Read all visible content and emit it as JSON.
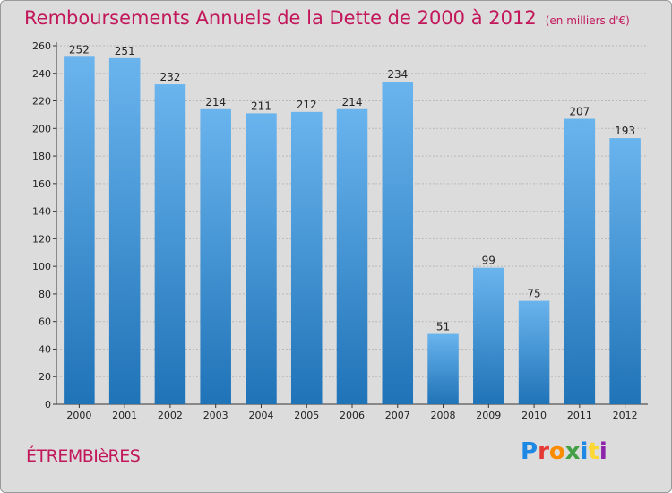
{
  "title": "Remboursements Annuels de la Dette de 2000 à 2012",
  "unit_note": "(en milliers d'€)",
  "commune": "ÉTREMBIèRES",
  "logo": {
    "letters": [
      "P",
      "r",
      "o",
      "x",
      "i",
      "t",
      "i"
    ],
    "colors": [
      "#1e88e5",
      "#e53935",
      "#fb8c00",
      "#43a047",
      "#1e88e5",
      "#fdd835",
      "#8e24aa"
    ]
  },
  "colors": {
    "bar_light": "#6ab4ee",
    "bar_dark": "#1f73b7",
    "background": "#dcdcdc",
    "title": "#c2185b"
  },
  "chart_data": {
    "type": "bar",
    "categories": [
      "2000",
      "2001",
      "2002",
      "2003",
      "2004",
      "2005",
      "2006",
      "2007",
      "2008",
      "2009",
      "2010",
      "2011",
      "2012"
    ],
    "values": [
      252,
      251,
      232,
      214,
      211,
      212,
      214,
      234,
      51,
      99,
      75,
      207,
      193
    ],
    "ylim": [
      0,
      260
    ],
    "yticks": [
      0,
      20,
      40,
      60,
      80,
      100,
      120,
      140,
      160,
      180,
      200,
      220,
      240,
      260
    ],
    "grid": true
  }
}
